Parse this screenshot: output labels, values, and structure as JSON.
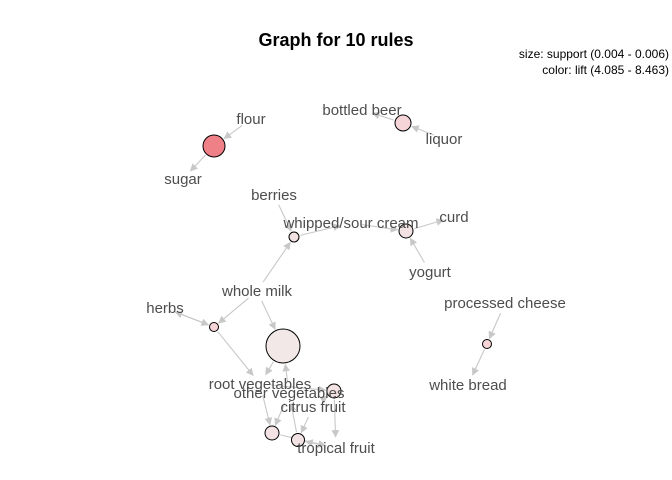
{
  "title": "Graph for 10 rules",
  "legend": {
    "size": "size: support (0.004 - 0.006)",
    "color": "color: lift (4.085 - 8.463)"
  },
  "colors": {
    "node_low_lift": "#f3e6e6",
    "node_mid_lift": "#f5d5d7",
    "node_high_lift": "#f08088",
    "edge": "#c8c8c8",
    "label": "#4d4d4d"
  },
  "items": [
    {
      "id": "flour",
      "label": "flour"
    },
    {
      "id": "sugar",
      "label": "sugar"
    },
    {
      "id": "bottled-beer",
      "label": "bottled beer"
    },
    {
      "id": "liquor",
      "label": "liquor"
    },
    {
      "id": "berries",
      "label": "berries"
    },
    {
      "id": "whipped-sour-cream",
      "label": "whipped/sour cream"
    },
    {
      "id": "curd",
      "label": "curd"
    },
    {
      "id": "yogurt",
      "label": "yogurt"
    },
    {
      "id": "whole-milk",
      "label": "whole milk"
    },
    {
      "id": "herbs",
      "label": "herbs"
    },
    {
      "id": "processed-cheese",
      "label": "processed cheese"
    },
    {
      "id": "white-bread",
      "label": "white bread"
    },
    {
      "id": "root-vegetables",
      "label": "root vegetables"
    },
    {
      "id": "other-vegetables",
      "label": "other vegetables"
    },
    {
      "id": "citrus-fruit",
      "label": "citrus fruit"
    },
    {
      "id": "tropical-fruit",
      "label": "tropical fruit"
    }
  ],
  "rules": [
    {
      "id": "r1",
      "color": "#f08088"
    },
    {
      "id": "r2",
      "color": "#f5d5d7"
    },
    {
      "id": "r3",
      "color": "#f2e2e3"
    },
    {
      "id": "r4",
      "color": "#f2e2e3"
    },
    {
      "id": "r5",
      "color": "#f5d5d7"
    },
    {
      "id": "r6",
      "color": "#f5d5d7"
    },
    {
      "id": "r7",
      "color": "#f3e8e8"
    },
    {
      "id": "r8",
      "color": "#f3e3e4"
    },
    {
      "id": "r9",
      "color": "#f3e3e4"
    },
    {
      "id": "r10",
      "color": "#f3e2e3"
    }
  ],
  "edges": [
    {
      "from": "flour",
      "to": "r1"
    },
    {
      "from": "r1",
      "to": "sugar"
    },
    {
      "from": "liquor",
      "to": "r2"
    },
    {
      "from": "r2",
      "to": "bottled-beer"
    },
    {
      "from": "berries",
      "to": "r3"
    },
    {
      "from": "whole-milk",
      "to": "r3"
    },
    {
      "from": "r3",
      "to": "whipped-sour-cream"
    },
    {
      "from": "yogurt",
      "to": "r4"
    },
    {
      "from": "whipped-sour-cream",
      "to": "r4"
    },
    {
      "from": "r4",
      "to": "curd"
    },
    {
      "from": "processed-cheese",
      "to": "r5"
    },
    {
      "from": "r5",
      "to": "white-bread"
    },
    {
      "from": "whole-milk",
      "to": "r6"
    },
    {
      "from": "r6",
      "to": "herbs"
    },
    {
      "from": "herbs",
      "to": "r6"
    },
    {
      "from": "r6",
      "to": "root-vegetables"
    },
    {
      "from": "whole-milk",
      "to": "r7"
    },
    {
      "from": "r7",
      "to": "root-vegetables"
    },
    {
      "from": "other-vegetables",
      "to": "r7"
    },
    {
      "from": "root-vegetables",
      "to": "r8"
    },
    {
      "from": "other-vegetables",
      "to": "r8"
    },
    {
      "from": "r8",
      "to": "tropical-fruit"
    },
    {
      "from": "citrus-fruit",
      "to": "r9"
    },
    {
      "from": "root-vegetables",
      "to": "r9"
    },
    {
      "from": "r9",
      "to": "tropical-fruit"
    },
    {
      "from": "tropical-fruit",
      "to": "r10"
    },
    {
      "from": "citrus-fruit",
      "to": "r10"
    },
    {
      "from": "r10",
      "to": "other-vegetables"
    }
  ]
}
